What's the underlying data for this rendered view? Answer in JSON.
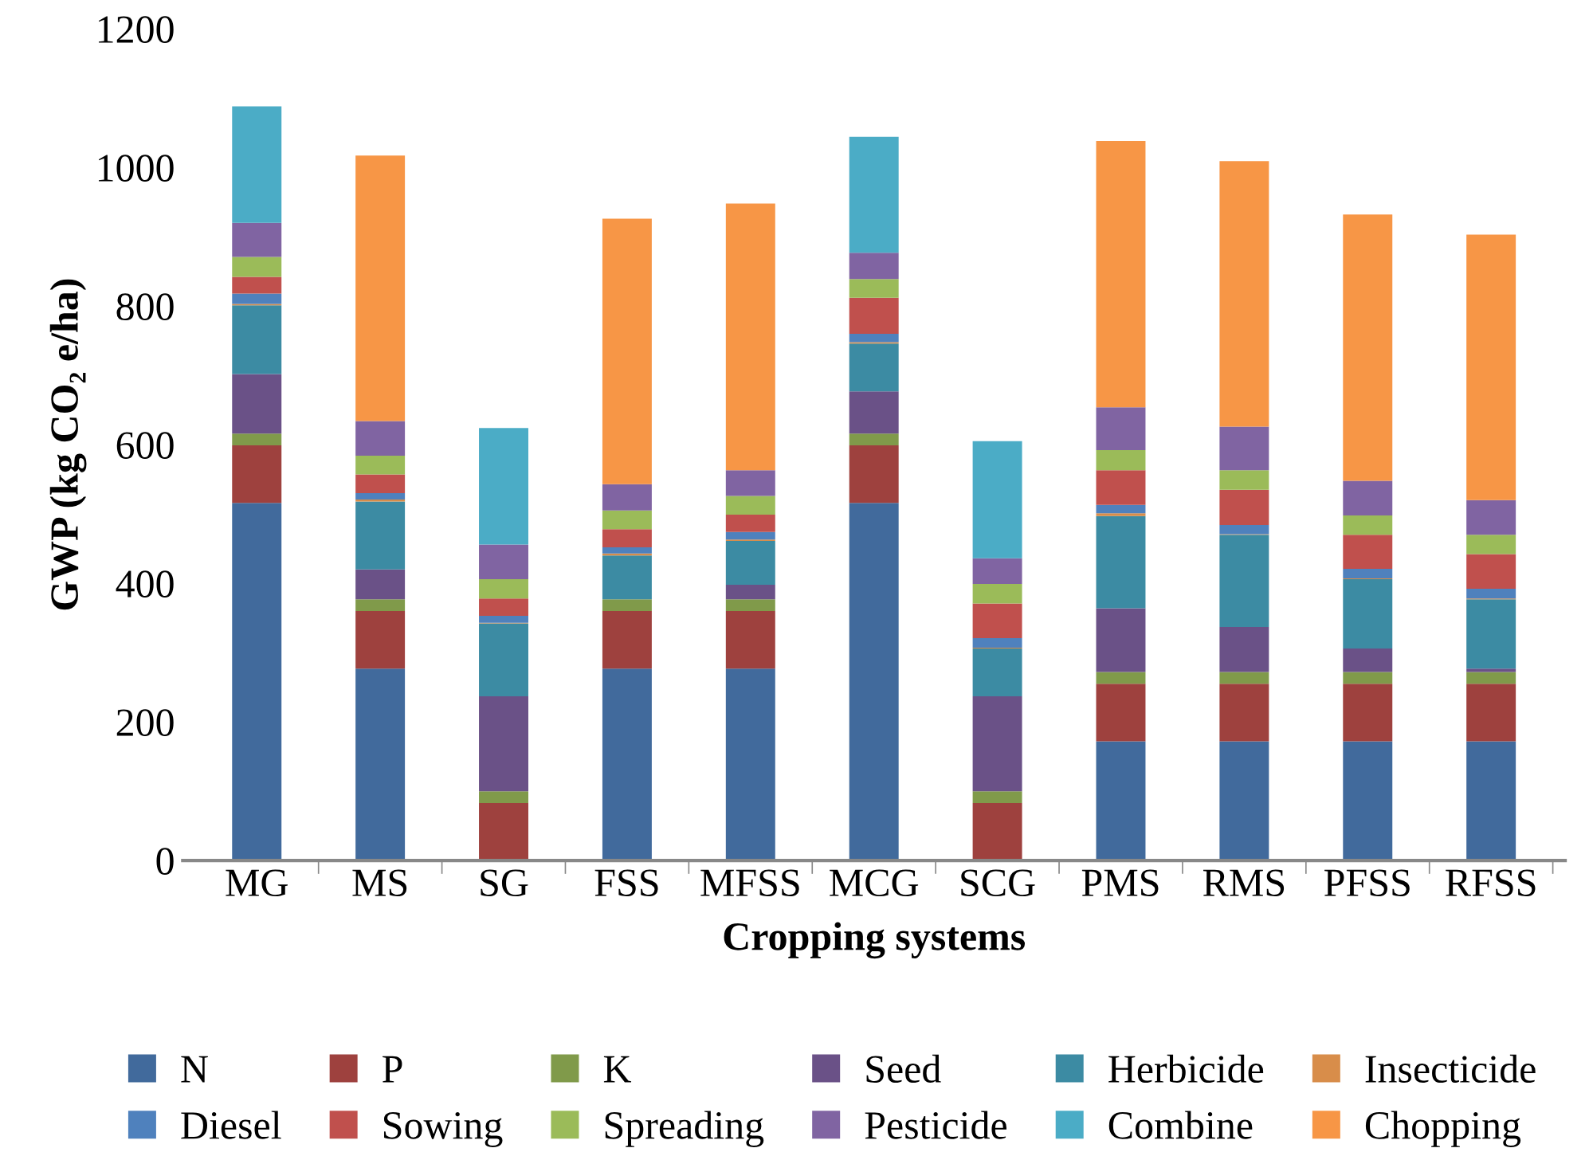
{
  "chart_data": {
    "type": "bar",
    "stacked": true,
    "xlabel": "Cropping systems",
    "ylabel": "GWP (kg CO₂ e/ha)",
    "categories": [
      "MG",
      "MS",
      "SG",
      "FSS",
      "MFSS",
      "MCG",
      "SCG",
      "PMS",
      "RMS",
      "PFSS",
      "RFSS"
    ],
    "ylim": [
      0,
      1200
    ],
    "yticks": [
      0,
      200,
      400,
      600,
      800,
      1000,
      1200
    ],
    "grid": false,
    "legend": "bottom",
    "series": [
      {
        "name": "N",
        "color": "#416a9c",
        "values": [
          516,
          277,
          0,
          277,
          277,
          516,
          0,
          172,
          172,
          172,
          172
        ]
      },
      {
        "name": "P",
        "color": "#9e413e",
        "values": [
          83,
          83,
          83,
          83,
          83,
          83,
          83,
          83,
          83,
          83,
          83
        ]
      },
      {
        "name": "K",
        "color": "#809a4a",
        "values": [
          17,
          17,
          17,
          17,
          17,
          17,
          17,
          17,
          17,
          17,
          17
        ]
      },
      {
        "name": "Seed",
        "color": "#6a5187",
        "values": [
          86,
          43,
          137,
          0,
          21,
          61,
          137,
          92,
          65,
          34,
          5
        ]
      },
      {
        "name": "Herbicide",
        "color": "#3c8ba3",
        "values": [
          99,
          98,
          105,
          63,
          63,
          69,
          69,
          133,
          133,
          100,
          100
        ]
      },
      {
        "name": "Insecticide",
        "color": "#d88d4a",
        "values": [
          2,
          3,
          1,
          3,
          2,
          2,
          1,
          4,
          1,
          1,
          1
        ]
      },
      {
        "name": "Diesel",
        "color": "#4f81bd",
        "values": [
          15,
          9,
          10,
          9,
          11,
          12,
          14,
          12,
          13,
          14,
          14
        ]
      },
      {
        "name": "Sowing",
        "color": "#c0504d",
        "values": [
          24,
          27,
          25,
          26,
          25,
          52,
          50,
          50,
          51,
          49,
          50
        ]
      },
      {
        "name": "Spreading",
        "color": "#9bbb59",
        "values": [
          29,
          27,
          28,
          27,
          27,
          27,
          28,
          29,
          28,
          28,
          28
        ]
      },
      {
        "name": "Pesticide",
        "color": "#8064a2",
        "values": [
          49,
          50,
          50,
          38,
          37,
          38,
          37,
          62,
          63,
          50,
          50
        ]
      },
      {
        "name": "Combine",
        "color": "#4bacc6",
        "values": [
          168,
          0,
          168,
          0,
          0,
          167,
          169,
          0,
          0,
          0,
          0
        ]
      },
      {
        "name": "Chopping",
        "color": "#f79646",
        "values": [
          0,
          383,
          0,
          383,
          385,
          0,
          0,
          384,
          383,
          384,
          383
        ]
      }
    ]
  }
}
